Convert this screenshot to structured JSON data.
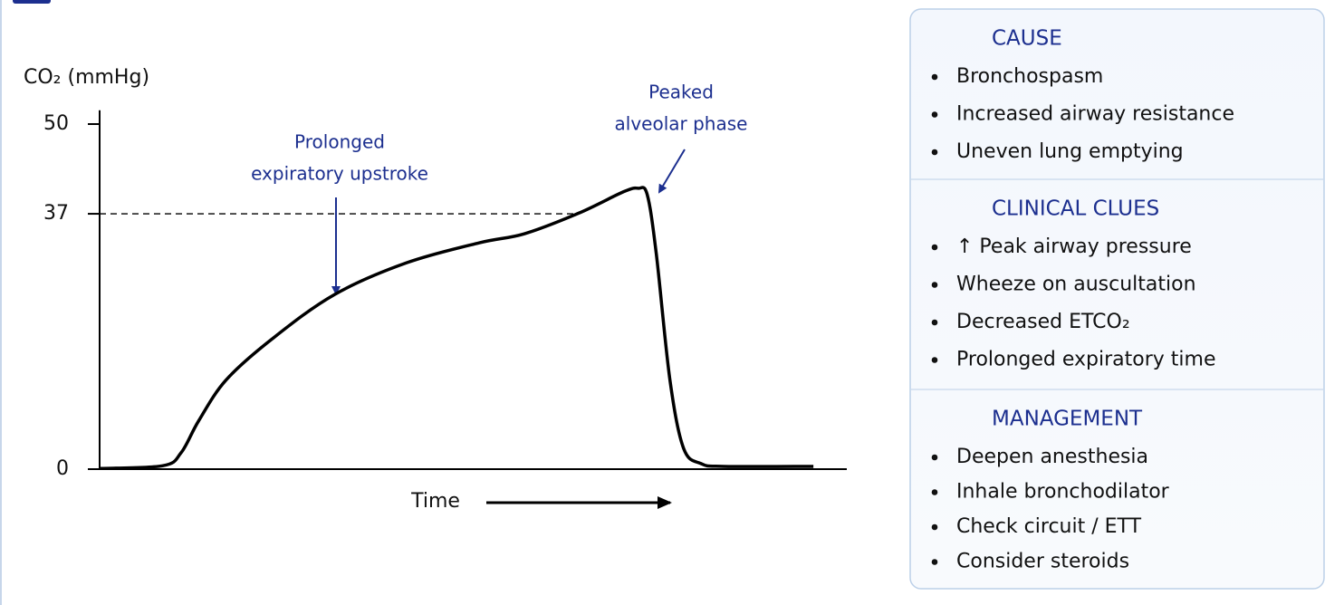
{
  "chart_data": {
    "type": "line",
    "y_label": "CO₂ (mmHg)",
    "x_label": "Time",
    "x": [
      1.6,
      9.9,
      12.3,
      14.6,
      18.2,
      24.2,
      32.5,
      42,
      51.6,
      57.5,
      64.7,
      70.6,
      72.5,
      73.7,
      74.9,
      76.7,
      78.5,
      80.8,
      83.8,
      95.6
    ],
    "values": [
      0.1,
      0.5,
      2.4,
      7,
      12.9,
      18.8,
      25.3,
      29.9,
      32.8,
      34.1,
      37.1,
      40.2,
      40.7,
      39.8,
      31.2,
      12.9,
      3,
      0.8,
      0.4,
      0.4
    ],
    "color": "#000000",
    "xlim": [
      0,
      100
    ],
    "ylim": [
      0,
      52
    ],
    "yticks": [
      0,
      37,
      50
    ],
    "reference_line": 37,
    "grid": false,
    "annotations": [
      {
        "lines": [
          "Prolonged",
          "expiratory upstroke"
        ]
      },
      {
        "lines": [
          "Peaked",
          "alveolar phase"
        ]
      }
    ]
  },
  "panel": {
    "sections": [
      {
        "title": "CAUSE",
        "items": [
          "Bronchospasm",
          "Increased airway resistance",
          "Uneven lung emptying"
        ]
      },
      {
        "title": "CLINICAL CLUES",
        "items": [
          "↑ Peak airway pressure",
          "Wheeze on auscultation",
          "Decreased ETCO₂",
          "Prolonged expiratory time"
        ]
      },
      {
        "title": "MANAGEMENT",
        "items": [
          "Deepen anesthesia",
          "Inhale bronchodilator",
          "Check circuit / ETT",
          "Consider steroids"
        ]
      }
    ]
  }
}
